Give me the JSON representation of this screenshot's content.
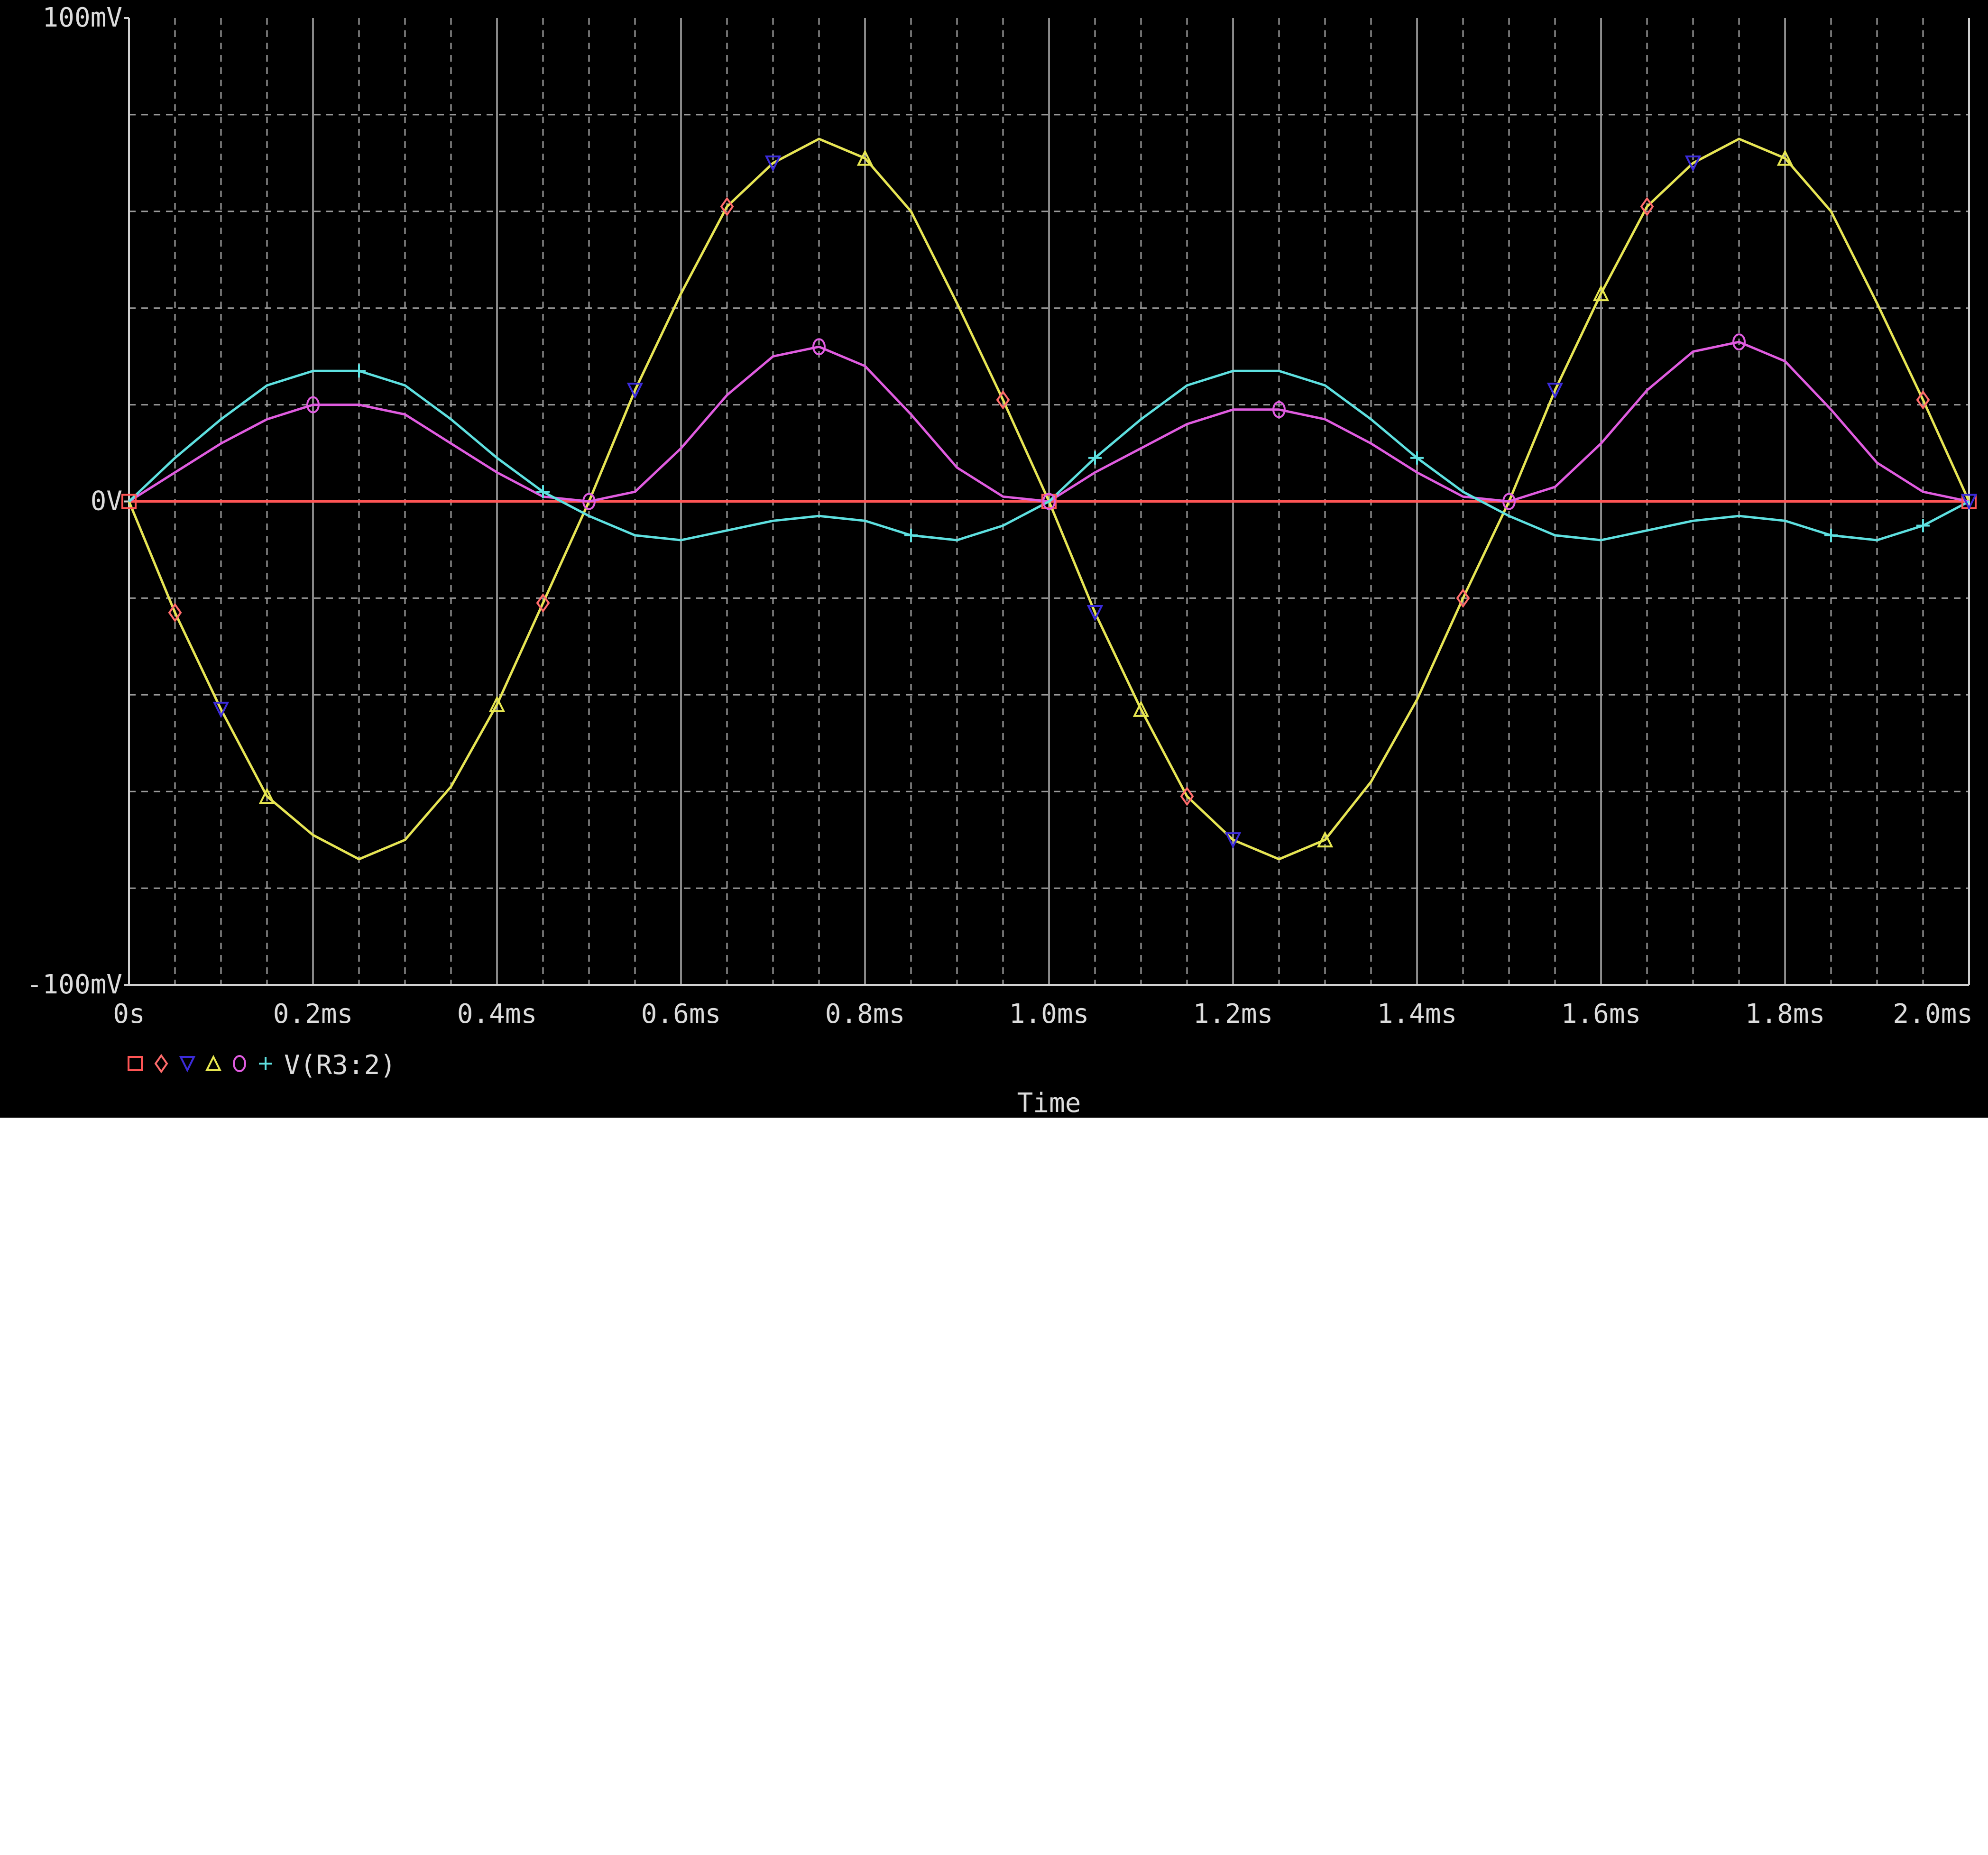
{
  "chart_data": {
    "type": "line",
    "xlabel": "Time",
    "ylabel": "",
    "xlim": [
      0,
      2.0
    ],
    "ylim": [
      -100,
      100
    ],
    "x_unit": "ms",
    "y_unit": "mV",
    "x_ticks": [
      "0s",
      "0.2ms",
      "0.4ms",
      "0.6ms",
      "0.8ms",
      "1.0ms",
      "1.2ms",
      "1.4ms",
      "1.6ms",
      "1.8ms",
      "2.0ms"
    ],
    "y_ticks": [
      "100mV",
      "0V",
      "-100mV"
    ],
    "grid": true,
    "legend": {
      "placement": "bottom-left",
      "label": "V(R3:2)",
      "markers": [
        "□",
        "◇",
        "▽",
        "△",
        "○",
        "+"
      ]
    },
    "series": [
      {
        "color": "#ff5555",
        "marker": "square",
        "x": [
          0,
          0.5,
          1.0,
          1.5,
          2.0
        ],
        "y": [
          0,
          0,
          0,
          0,
          0
        ]
      },
      {
        "color": "#ff6b6b",
        "marker": "diamond",
        "x": [
          0,
          0.05,
          0.1,
          0.15,
          0.2,
          0.25,
          0.3,
          0.35,
          0.4,
          0.45,
          0.5,
          0.55,
          0.6,
          0.65,
          0.7,
          0.75,
          0.8,
          0.85,
          0.9,
          0.95,
          1.0,
          1.05,
          1.1,
          1.15,
          1.2,
          1.25,
          1.3,
          1.35,
          1.4,
          1.45,
          1.5,
          1.55,
          1.6,
          1.65,
          1.7,
          1.75,
          1.8,
          1.85,
          1.9,
          1.95,
          2.0
        ],
        "y": [
          0,
          -23,
          -43,
          -61,
          -69,
          -74,
          -70,
          -59,
          -42,
          -21,
          0,
          23,
          43,
          61,
          70,
          75,
          71,
          60,
          41,
          21,
          0,
          -23,
          -43,
          -61,
          -70,
          -74,
          -70,
          -58,
          -41,
          -20,
          0,
          23,
          43,
          61,
          70,
          75,
          71,
          60,
          41,
          21,
          0
        ]
      },
      {
        "color": "#3b2bd9",
        "marker": "triangle-down",
        "x": [
          0,
          0.05,
          0.1,
          0.15,
          0.2,
          0.25,
          0.3,
          0.35,
          0.4,
          0.45,
          0.5,
          0.55,
          0.6,
          0.65,
          0.7,
          0.75,
          0.8,
          0.85,
          0.9,
          0.95,
          1.0,
          1.05,
          1.1,
          1.15,
          1.2,
          1.25,
          1.3,
          1.35,
          1.4,
          1.45,
          1.5,
          1.55,
          1.6,
          1.65,
          1.7,
          1.75,
          1.8,
          1.85,
          1.9,
          1.95,
          2.0
        ],
        "y": [
          0,
          -23,
          -43,
          -61,
          -69,
          -74,
          -70,
          -59,
          -42,
          -21,
          0,
          23,
          43,
          61,
          70,
          75,
          71,
          60,
          41,
          21,
          0,
          -23,
          -43,
          -61,
          -70,
          -74,
          -70,
          -58,
          -41,
          -20,
          0,
          23,
          43,
          61,
          70,
          75,
          71,
          60,
          41,
          21,
          0
        ]
      },
      {
        "color": "#e6e650",
        "marker": "triangle-up",
        "x": [
          0,
          0.05,
          0.1,
          0.15,
          0.2,
          0.25,
          0.3,
          0.35,
          0.4,
          0.45,
          0.5,
          0.55,
          0.6,
          0.65,
          0.7,
          0.75,
          0.8,
          0.85,
          0.9,
          0.95,
          1.0,
          1.05,
          1.1,
          1.15,
          1.2,
          1.25,
          1.3,
          1.35,
          1.4,
          1.45,
          1.5,
          1.55,
          1.6,
          1.65,
          1.7,
          1.75,
          1.8,
          1.85,
          1.9,
          1.95,
          2.0
        ],
        "y": [
          0,
          -23,
          -43,
          -61,
          -69,
          -74,
          -70,
          -59,
          -42,
          -21,
          0,
          23,
          43,
          61,
          70,
          75,
          71,
          60,
          41,
          21,
          0,
          -23,
          -43,
          -61,
          -70,
          -74,
          -70,
          -58,
          -41,
          -20,
          0,
          23,
          43,
          61,
          70,
          75,
          71,
          60,
          41,
          21,
          0
        ]
      },
      {
        "color": "#e05ce0",
        "marker": "circle",
        "x": [
          0,
          0.05,
          0.1,
          0.15,
          0.2,
          0.25,
          0.3,
          0.35,
          0.4,
          0.45,
          0.5,
          0.55,
          0.6,
          0.65,
          0.7,
          0.75,
          0.8,
          0.85,
          0.9,
          0.95,
          1.0,
          1.05,
          1.1,
          1.15,
          1.2,
          1.25,
          1.3,
          1.35,
          1.4,
          1.45,
          1.5,
          1.55,
          1.6,
          1.65,
          1.7,
          1.75,
          1.8,
          1.85,
          1.9,
          1.95,
          2.0
        ],
        "y": [
          0,
          6,
          12,
          17,
          20,
          20,
          18,
          12,
          6,
          1,
          0,
          2,
          11,
          22,
          30,
          32,
          28,
          18,
          7,
          1,
          0,
          6,
          11,
          16,
          19,
          19,
          17,
          12,
          6,
          1,
          0,
          3,
          12,
          23,
          31,
          33,
          29,
          19,
          8,
          2,
          0
        ]
      },
      {
        "color": "#5ee0e0",
        "marker": "plus",
        "x": [
          0,
          0.05,
          0.1,
          0.15,
          0.2,
          0.25,
          0.3,
          0.35,
          0.4,
          0.45,
          0.5,
          0.55,
          0.6,
          0.65,
          0.7,
          0.75,
          0.8,
          0.85,
          0.9,
          0.95,
          1.0,
          1.05,
          1.1,
          1.15,
          1.2,
          1.25,
          1.3,
          1.35,
          1.4,
          1.45,
          1.5,
          1.55,
          1.6,
          1.65,
          1.7,
          1.75,
          1.8,
          1.85,
          1.9,
          1.95,
          2.0
        ],
        "y": [
          0,
          9,
          17,
          24,
          27,
          27,
          24,
          17,
          9,
          2,
          -3,
          -7,
          -8,
          -6,
          -4,
          -3,
          -4,
          -7,
          -8,
          -5,
          0,
          9,
          17,
          24,
          27,
          27,
          24,
          17,
          9,
          2,
          -3,
          -7,
          -8,
          -6,
          -4,
          -3,
          -4,
          -7,
          -8,
          -5,
          0
        ]
      }
    ]
  }
}
